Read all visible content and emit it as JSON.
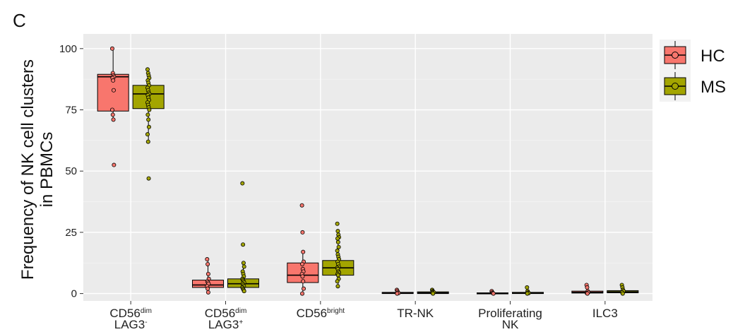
{
  "panel_label": "C",
  "chart_data": {
    "type": "box",
    "ylabel_lines": [
      "Frequency of NK cell clusters",
      "in PBMCs"
    ],
    "ylim": [
      -3,
      106
    ],
    "yticks": [
      0,
      25,
      50,
      75,
      100
    ],
    "grid": true,
    "legend_position": "right",
    "categories": [
      {
        "main": "CD56",
        "sup": "dim",
        "line2": "LAG3",
        "line2_sup": "-"
      },
      {
        "main": "CD56",
        "sup": "dim",
        "line2": "LAG3",
        "line2_sup": "+"
      },
      {
        "main": "CD56",
        "sup": "bright",
        "line2": "",
        "line2_sup": ""
      },
      {
        "main": "TR-NK",
        "sup": "",
        "line2": "",
        "line2_sup": ""
      },
      {
        "main": "Proliferating",
        "sup": "",
        "line2": "NK",
        "line2_sup": ""
      },
      {
        "main": "ILC3",
        "sup": "",
        "line2": "",
        "line2_sup": ""
      }
    ],
    "series": [
      {
        "name": "HC",
        "color": "#F8766D",
        "boxes": [
          {
            "q1": 74.5,
            "median": 88.5,
            "q3": 89.5,
            "lo": 71.0,
            "hi": 100.0
          },
          {
            "q1": 2.5,
            "median": 3.5,
            "q3": 5.5,
            "lo": 0.5,
            "hi": 14.0
          },
          {
            "q1": 4.5,
            "median": 7.5,
            "q3": 12.5,
            "lo": 0.0,
            "hi": 17.0
          },
          {
            "q1": 0.0,
            "median": 0.2,
            "q3": 0.5,
            "lo": 0.0,
            "hi": 1.5
          },
          {
            "q1": 0.0,
            "median": 0.1,
            "q3": 0.3,
            "lo": 0.0,
            "hi": 1.0
          },
          {
            "q1": 0.2,
            "median": 0.5,
            "q3": 1.0,
            "lo": 0.0,
            "hi": 3.5
          }
        ],
        "points": [
          [
            100,
            90,
            89,
            88.5,
            88,
            87,
            83,
            75,
            73,
            71,
            52.5
          ],
          [
            14,
            12,
            8,
            6,
            5,
            4.5,
            4,
            3,
            2,
            0.5
          ],
          [
            36,
            25,
            17,
            13,
            12,
            10,
            9,
            8,
            7,
            5,
            2,
            0
          ],
          [
            1.5,
            1,
            0.5,
            0.2,
            0
          ],
          [
            1.0,
            0.5,
            0.2,
            0
          ],
          [
            3.5,
            2.5,
            1,
            0.5,
            0.2,
            0
          ]
        ]
      },
      {
        "name": "MS",
        "color": "#A3A500",
        "boxes": [
          {
            "q1": 75.5,
            "median": 81.5,
            "q3": 85.0,
            "lo": 62.0,
            "hi": 91.5
          },
          {
            "q1": 2.5,
            "median": 4.0,
            "q3": 6.0,
            "lo": 1.0,
            "hi": 12.5
          },
          {
            "q1": 7.5,
            "median": 10.5,
            "q3": 13.5,
            "lo": 3.0,
            "hi": 22.5
          },
          {
            "q1": 0.0,
            "median": 0.3,
            "q3": 0.7,
            "lo": 0.0,
            "hi": 1.5
          },
          {
            "q1": 0.0,
            "median": 0.2,
            "q3": 0.5,
            "lo": 0.0,
            "hi": 1.0
          },
          {
            "q1": 0.3,
            "median": 0.7,
            "q3": 1.2,
            "lo": 0.0,
            "hi": 2.5
          }
        ],
        "points": [
          [
            91.5,
            90,
            89,
            88,
            87,
            86,
            85,
            84,
            83,
            82,
            81.5,
            81,
            80,
            79,
            78,
            77,
            76,
            75,
            73,
            71,
            68,
            65,
            62,
            47
          ],
          [
            45,
            20,
            12.5,
            11,
            9,
            8,
            7,
            6,
            5.5,
            5,
            4.5,
            4,
            3.5,
            3,
            2.5,
            2,
            1.5,
            1
          ],
          [
            28.5,
            25.5,
            24,
            23,
            22.5,
            21,
            19,
            17.5,
            16,
            15,
            14,
            13,
            12,
            11,
            10.5,
            10,
            9,
            8.5,
            8,
            7.5,
            6,
            5,
            3
          ],
          [
            1.5,
            1,
            0.7,
            0.5,
            0.3,
            0
          ],
          [
            2.5,
            1,
            0.5,
            0.2,
            0
          ],
          [
            3.5,
            2.5,
            1.5,
            1,
            0.5,
            0
          ]
        ]
      }
    ]
  }
}
